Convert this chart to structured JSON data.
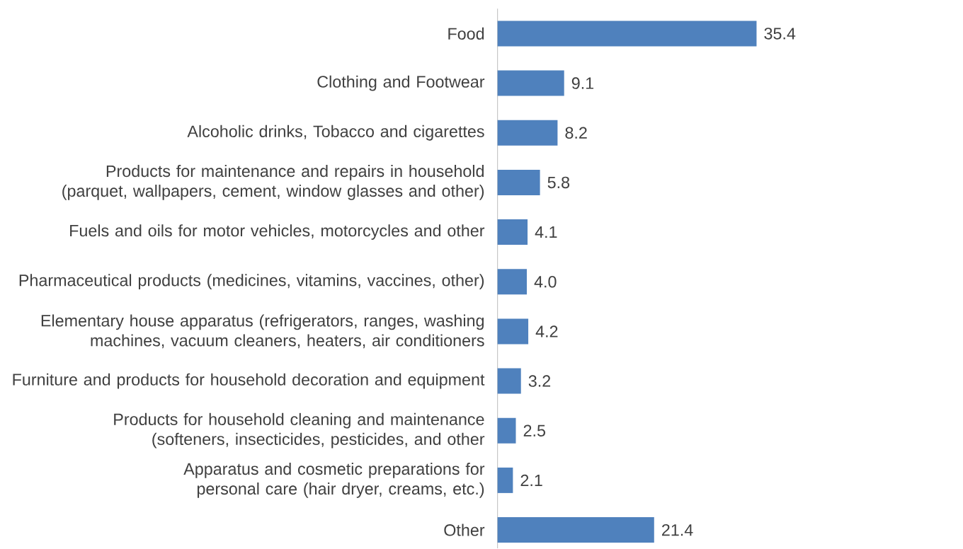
{
  "chart_data": {
    "type": "bar",
    "orientation": "horizontal",
    "categories": [
      "Food",
      "Clothing and Footwear",
      "Alcoholic drinks, Tobacco and cigarettes",
      "Products for maintenance and repairs in household (parquet, wallpapers, cement, window glasses and other)",
      "Fuels and oils for motor vehicles, motorcycles and other",
      "Pharmaceutical products (medicines, vitamins, vaccines, other)",
      "Elementary house apparatus (refrigerators, ranges, washing machines, vacuum cleaners, heaters, air conditioners",
      "Furniture and products for household decoration and equipment",
      "Products for household cleaning and maintenance (softeners, insecticides, pesticides, and other",
      "Apparatus and cosmetic preparations for personal care (hair dryer, creams, etc.)",
      "Other"
    ],
    "values": [
      35.4,
      9.1,
      8.2,
      5.8,
      4.1,
      4.0,
      4.2,
      3.2,
      2.5,
      2.1,
      21.4
    ],
    "value_labels": [
      "35.4",
      "9.1",
      "8.2",
      "5.8",
      "4.1",
      "4.0",
      "4.2",
      "3.2",
      "2.5",
      "2.1",
      "21.4"
    ],
    "color": "#4f81bd"
  }
}
